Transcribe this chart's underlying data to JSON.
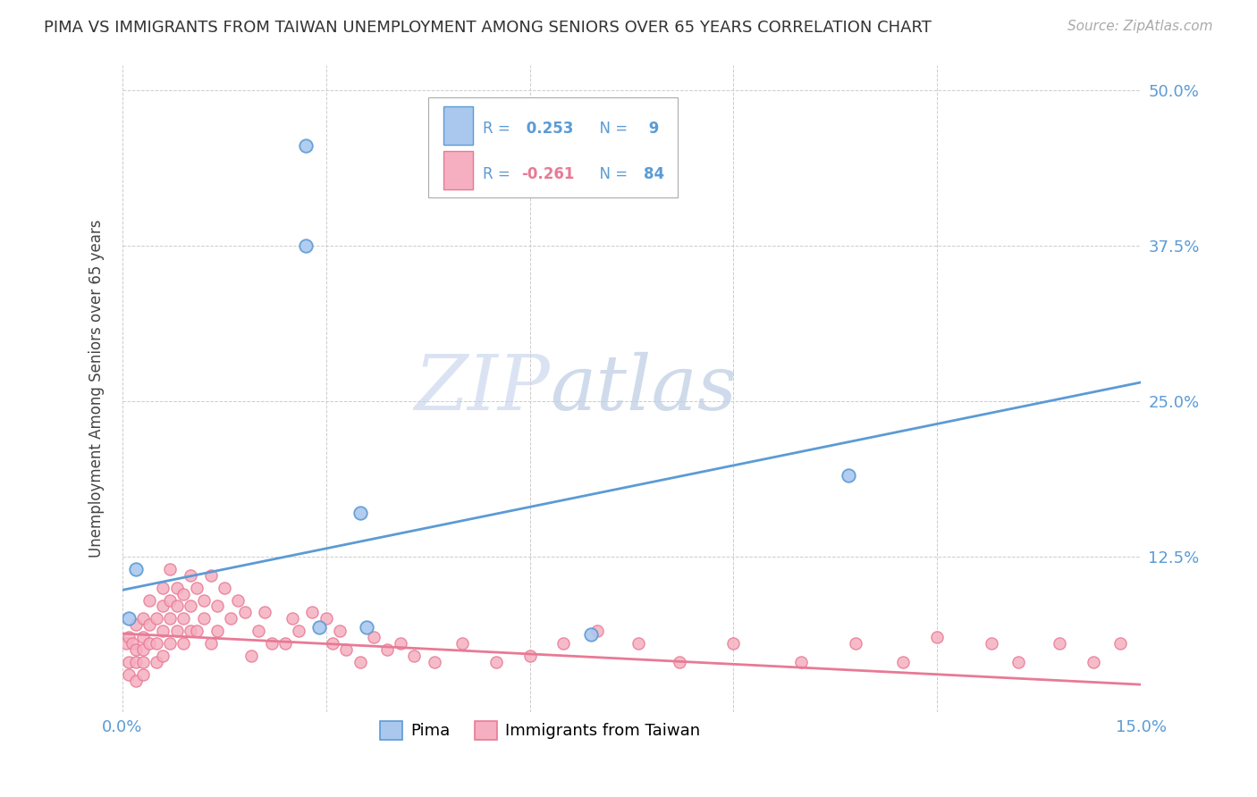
{
  "title": "PIMA VS IMMIGRANTS FROM TAIWAN UNEMPLOYMENT AMONG SENIORS OVER 65 YEARS CORRELATION CHART",
  "source": "Source: ZipAtlas.com",
  "ylabel": "Unemployment Among Seniors over 65 years",
  "xlim": [
    0.0,
    0.15
  ],
  "ylim": [
    0.0,
    0.52
  ],
  "xticks": [
    0.0,
    0.03,
    0.06,
    0.09,
    0.12,
    0.15
  ],
  "xtick_labels": [
    "0.0%",
    "",
    "",
    "",
    "",
    "15.0%"
  ],
  "yticks": [
    0.0,
    0.125,
    0.25,
    0.375,
    0.5
  ],
  "ytick_labels": [
    "",
    "12.5%",
    "25.0%",
    "37.5%",
    "50.0%"
  ],
  "background_color": "#ffffff",
  "grid_color": "#cccccc",
  "watermark_zip": "ZIP",
  "watermark_atlas": "atlas",
  "pima_color": "#aac8ee",
  "taiwan_color": "#f5afc0",
  "pima_edge_color": "#5b9bd5",
  "taiwan_edge_color": "#e87a95",
  "pima_R": 0.253,
  "pima_N": 9,
  "taiwan_R": -0.261,
  "taiwan_N": 84,
  "legend_label_pima": "Pima",
  "legend_label_taiwan": "Immigrants from Taiwan",
  "pima_scatter_x": [
    0.001,
    0.002,
    0.027,
    0.027,
    0.029,
    0.035,
    0.036,
    0.069,
    0.107
  ],
  "pima_scatter_y": [
    0.075,
    0.115,
    0.455,
    0.375,
    0.068,
    0.16,
    0.068,
    0.062,
    0.19
  ],
  "taiwan_scatter_x": [
    0.0005,
    0.001,
    0.001,
    0.001,
    0.0015,
    0.002,
    0.002,
    0.002,
    0.002,
    0.003,
    0.003,
    0.003,
    0.003,
    0.003,
    0.004,
    0.004,
    0.004,
    0.005,
    0.005,
    0.005,
    0.006,
    0.006,
    0.006,
    0.006,
    0.007,
    0.007,
    0.007,
    0.007,
    0.008,
    0.008,
    0.008,
    0.009,
    0.009,
    0.009,
    0.01,
    0.01,
    0.01,
    0.011,
    0.011,
    0.012,
    0.012,
    0.013,
    0.013,
    0.014,
    0.014,
    0.015,
    0.016,
    0.017,
    0.018,
    0.019,
    0.02,
    0.021,
    0.022,
    0.024,
    0.025,
    0.026,
    0.028,
    0.03,
    0.031,
    0.032,
    0.033,
    0.035,
    0.037,
    0.039,
    0.041,
    0.043,
    0.046,
    0.05,
    0.055,
    0.06,
    0.065,
    0.07,
    0.076,
    0.082,
    0.09,
    0.1,
    0.108,
    0.115,
    0.12,
    0.128,
    0.132,
    0.138,
    0.143,
    0.147
  ],
  "taiwan_scatter_y": [
    0.055,
    0.04,
    0.06,
    0.03,
    0.055,
    0.05,
    0.07,
    0.04,
    0.025,
    0.06,
    0.075,
    0.05,
    0.04,
    0.03,
    0.09,
    0.07,
    0.055,
    0.075,
    0.055,
    0.04,
    0.1,
    0.085,
    0.065,
    0.045,
    0.09,
    0.075,
    0.115,
    0.055,
    0.085,
    0.1,
    0.065,
    0.095,
    0.075,
    0.055,
    0.11,
    0.085,
    0.065,
    0.1,
    0.065,
    0.09,
    0.075,
    0.11,
    0.055,
    0.085,
    0.065,
    0.1,
    0.075,
    0.09,
    0.08,
    0.045,
    0.065,
    0.08,
    0.055,
    0.055,
    0.075,
    0.065,
    0.08,
    0.075,
    0.055,
    0.065,
    0.05,
    0.04,
    0.06,
    0.05,
    0.055,
    0.045,
    0.04,
    0.055,
    0.04,
    0.045,
    0.055,
    0.065,
    0.055,
    0.04,
    0.055,
    0.04,
    0.055,
    0.04,
    0.06,
    0.055,
    0.04,
    0.055,
    0.04,
    0.055
  ],
  "pima_line_x0": 0.0,
  "pima_line_x1": 0.15,
  "pima_line_y0": 0.098,
  "pima_line_y1": 0.265,
  "taiwan_line_x0": 0.0,
  "taiwan_line_x1": 0.15,
  "taiwan_line_y0": 0.063,
  "taiwan_line_y1": 0.022,
  "title_fontsize": 13,
  "source_fontsize": 11,
  "tick_fontsize": 13,
  "ylabel_fontsize": 12
}
